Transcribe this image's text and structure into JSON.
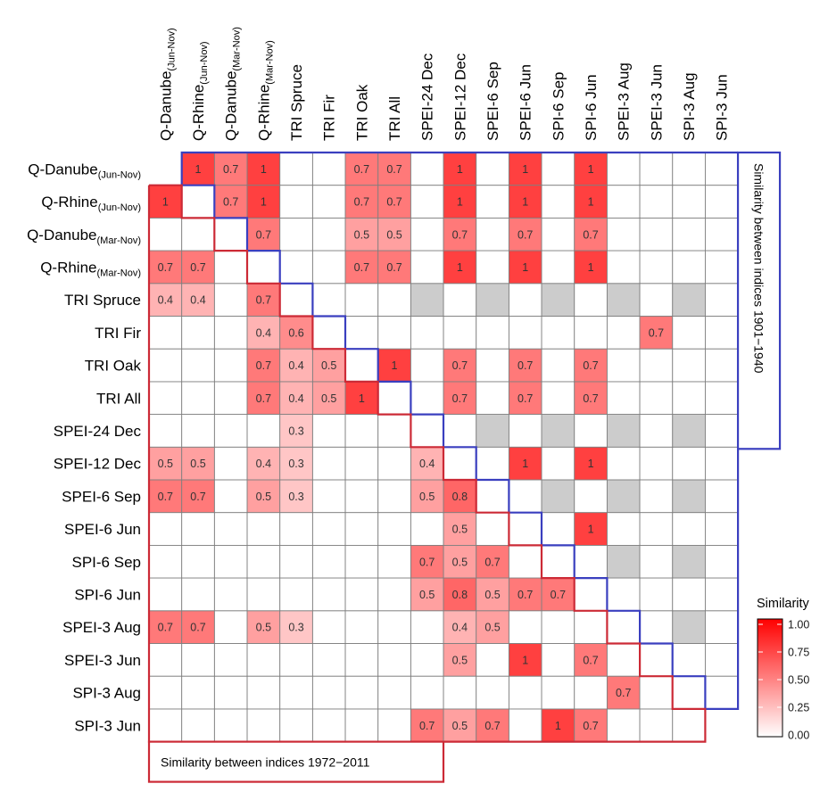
{
  "chart_data": {
    "type": "heatmap",
    "title": "",
    "indices": [
      {
        "name": "Q-Danube",
        "sub": "(Jun-Nov)"
      },
      {
        "name": "Q-Rhine",
        "sub": "(Jun-Nov)"
      },
      {
        "name": "Q-Danube",
        "sub": "(Mar-Nov)"
      },
      {
        "name": "Q-Rhine",
        "sub": "(Mar-Nov)"
      },
      {
        "name": "TRI Spruce",
        "sub": ""
      },
      {
        "name": "TRI Fir",
        "sub": ""
      },
      {
        "name": "TRI Oak",
        "sub": ""
      },
      {
        "name": "TRI All",
        "sub": ""
      },
      {
        "name": "SPEI-24 Dec",
        "sub": ""
      },
      {
        "name": "SPEI-12 Dec",
        "sub": ""
      },
      {
        "name": "SPEI-6 Sep",
        "sub": ""
      },
      {
        "name": "SPEI-6 Jun",
        "sub": ""
      },
      {
        "name": "SPI-6 Sep",
        "sub": ""
      },
      {
        "name": "SPI-6 Jun",
        "sub": ""
      },
      {
        "name": "SPEI-3 Aug",
        "sub": ""
      },
      {
        "name": "SPEI-3 Jun",
        "sub": ""
      },
      {
        "name": "SPI-3 Aug",
        "sub": ""
      },
      {
        "name": "SPI-3 Jun",
        "sub": ""
      }
    ],
    "upper_triangle_label": "Similarity between indices 1901−1940",
    "lower_triangle_label": "Similarity between indices 1972−2011",
    "upper_cells": [
      {
        "row": 0,
        "col": 1,
        "value": 1
      },
      {
        "row": 0,
        "col": 2,
        "value": 0.7
      },
      {
        "row": 0,
        "col": 3,
        "value": 1
      },
      {
        "row": 0,
        "col": 6,
        "value": 0.7
      },
      {
        "row": 0,
        "col": 7,
        "value": 0.7
      },
      {
        "row": 0,
        "col": 9,
        "value": 1
      },
      {
        "row": 0,
        "col": 11,
        "value": 1
      },
      {
        "row": 0,
        "col": 13,
        "value": 1
      },
      {
        "row": 1,
        "col": 2,
        "value": 0.7
      },
      {
        "row": 1,
        "col": 3,
        "value": 1
      },
      {
        "row": 1,
        "col": 6,
        "value": 0.7
      },
      {
        "row": 1,
        "col": 7,
        "value": 0.7
      },
      {
        "row": 1,
        "col": 9,
        "value": 1
      },
      {
        "row": 1,
        "col": 11,
        "value": 1
      },
      {
        "row": 1,
        "col": 13,
        "value": 1
      },
      {
        "row": 2,
        "col": 3,
        "value": 0.7
      },
      {
        "row": 2,
        "col": 6,
        "value": 0.5
      },
      {
        "row": 2,
        "col": 7,
        "value": 0.5
      },
      {
        "row": 2,
        "col": 9,
        "value": 0.7
      },
      {
        "row": 2,
        "col": 11,
        "value": 0.7
      },
      {
        "row": 2,
        "col": 13,
        "value": 0.7
      },
      {
        "row": 3,
        "col": 6,
        "value": 0.7
      },
      {
        "row": 3,
        "col": 7,
        "value": 0.7
      },
      {
        "row": 3,
        "col": 9,
        "value": 1
      },
      {
        "row": 3,
        "col": 11,
        "value": 1
      },
      {
        "row": 3,
        "col": 13,
        "value": 1
      },
      {
        "row": 5,
        "col": 15,
        "value": 0.7
      },
      {
        "row": 6,
        "col": 7,
        "value": 1
      },
      {
        "row": 6,
        "col": 9,
        "value": 0.7
      },
      {
        "row": 6,
        "col": 11,
        "value": 0.7
      },
      {
        "row": 6,
        "col": 13,
        "value": 0.7
      },
      {
        "row": 7,
        "col": 9,
        "value": 0.7
      },
      {
        "row": 7,
        "col": 11,
        "value": 0.7
      },
      {
        "row": 7,
        "col": 13,
        "value": 0.7
      },
      {
        "row": 9,
        "col": 11,
        "value": 1
      },
      {
        "row": 9,
        "col": 13,
        "value": 1
      },
      {
        "row": 11,
        "col": 13,
        "value": 1
      }
    ],
    "upper_missing_cells": [
      {
        "row": 4,
        "col": 8
      },
      {
        "row": 4,
        "col": 10
      },
      {
        "row": 4,
        "col": 12
      },
      {
        "row": 4,
        "col": 14
      },
      {
        "row": 4,
        "col": 16
      },
      {
        "row": 8,
        "col": 10
      },
      {
        "row": 8,
        "col": 12
      },
      {
        "row": 8,
        "col": 14
      },
      {
        "row": 8,
        "col": 16
      },
      {
        "row": 10,
        "col": 12
      },
      {
        "row": 10,
        "col": 14
      },
      {
        "row": 10,
        "col": 16
      },
      {
        "row": 12,
        "col": 14
      },
      {
        "row": 12,
        "col": 16
      },
      {
        "row": 14,
        "col": 16
      }
    ],
    "lower_cells": [
      {
        "row": 1,
        "col": 0,
        "value": 1
      },
      {
        "row": 3,
        "col": 0,
        "value": 0.7
      },
      {
        "row": 3,
        "col": 1,
        "value": 0.7
      },
      {
        "row": 4,
        "col": 0,
        "value": 0.4
      },
      {
        "row": 4,
        "col": 1,
        "value": 0.4
      },
      {
        "row": 4,
        "col": 3,
        "value": 0.7
      },
      {
        "row": 5,
        "col": 3,
        "value": 0.4
      },
      {
        "row": 5,
        "col": 4,
        "value": 0.6
      },
      {
        "row": 6,
        "col": 3,
        "value": 0.7
      },
      {
        "row": 6,
        "col": 4,
        "value": 0.4
      },
      {
        "row": 6,
        "col": 5,
        "value": 0.5
      },
      {
        "row": 7,
        "col": 3,
        "value": 0.7
      },
      {
        "row": 7,
        "col": 4,
        "value": 0.4
      },
      {
        "row": 7,
        "col": 5,
        "value": 0.5
      },
      {
        "row": 7,
        "col": 6,
        "value": 1
      },
      {
        "row": 8,
        "col": 4,
        "value": 0.3
      },
      {
        "row": 9,
        "col": 0,
        "value": 0.5
      },
      {
        "row": 9,
        "col": 1,
        "value": 0.5
      },
      {
        "row": 9,
        "col": 3,
        "value": 0.4
      },
      {
        "row": 9,
        "col": 4,
        "value": 0.3
      },
      {
        "row": 9,
        "col": 8,
        "value": 0.4
      },
      {
        "row": 10,
        "col": 0,
        "value": 0.7
      },
      {
        "row": 10,
        "col": 1,
        "value": 0.7
      },
      {
        "row": 10,
        "col": 3,
        "value": 0.5
      },
      {
        "row": 10,
        "col": 4,
        "value": 0.3
      },
      {
        "row": 10,
        "col": 8,
        "value": 0.5
      },
      {
        "row": 10,
        "col": 9,
        "value": 0.8
      },
      {
        "row": 11,
        "col": 9,
        "value": 0.5
      },
      {
        "row": 12,
        "col": 8,
        "value": 0.7
      },
      {
        "row": 12,
        "col": 9,
        "value": 0.5
      },
      {
        "row": 12,
        "col": 10,
        "value": 0.7
      },
      {
        "row": 13,
        "col": 8,
        "value": 0.5
      },
      {
        "row": 13,
        "col": 9,
        "value": 0.8
      },
      {
        "row": 13,
        "col": 10,
        "value": 0.5
      },
      {
        "row": 13,
        "col": 11,
        "value": 0.7
      },
      {
        "row": 13,
        "col": 12,
        "value": 0.7
      },
      {
        "row": 14,
        "col": 0,
        "value": 0.7
      },
      {
        "row": 14,
        "col": 1,
        "value": 0.7
      },
      {
        "row": 14,
        "col": 3,
        "value": 0.5
      },
      {
        "row": 14,
        "col": 4,
        "value": 0.3
      },
      {
        "row": 14,
        "col": 9,
        "value": 0.4
      },
      {
        "row": 14,
        "col": 10,
        "value": 0.5
      },
      {
        "row": 15,
        "col": 9,
        "value": 0.5
      },
      {
        "row": 15,
        "col": 11,
        "value": 1
      },
      {
        "row": 15,
        "col": 13,
        "value": 0.7
      },
      {
        "row": 16,
        "col": 14,
        "value": 0.7
      },
      {
        "row": 17,
        "col": 8,
        "value": 0.7
      },
      {
        "row": 17,
        "col": 9,
        "value": 0.5
      },
      {
        "row": 17,
        "col": 10,
        "value": 0.7
      },
      {
        "row": 17,
        "col": 12,
        "value": 1
      },
      {
        "row": 17,
        "col": 13,
        "value": 0.7
      }
    ],
    "legend": {
      "title": "Similarity",
      "position": "bottom-right",
      "ticks": [
        1.0,
        0.75,
        0.5,
        0.25,
        0.0
      ],
      "tick_labels": [
        "1.00",
        "0.75",
        "0.50",
        "0.25",
        "0.00"
      ],
      "range": [
        0,
        1
      ],
      "color_low": "#ffffff",
      "color_high": "#ff0000"
    },
    "colors": {
      "missing": "#cccccc",
      "upper_boundary": "#3a3fbf",
      "lower_boundary": "#cc2a36",
      "grid": "#7f7f7f"
    }
  }
}
